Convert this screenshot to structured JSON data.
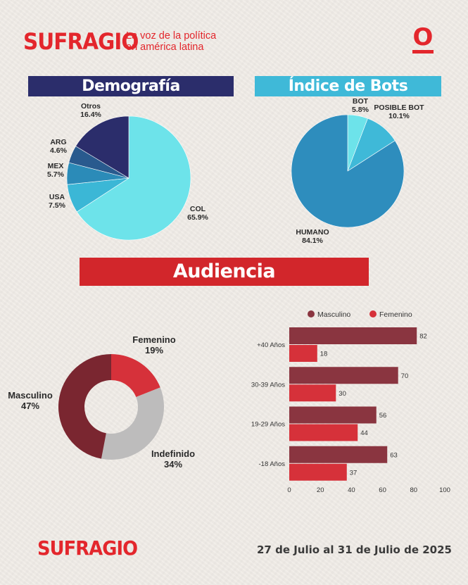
{
  "header": {
    "brand": "SUFRAGIO",
    "tagline_line1": "La voz de la política",
    "tagline_line2": "en américa latina",
    "logo_glyph": "O"
  },
  "colors": {
    "accent_red": "#e3262c",
    "navy": "#2b2d6b",
    "sky": "#3fb9d8",
    "banner_red": "#d2262b"
  },
  "sections": {
    "demografia": "Demografía",
    "bots": "Índice de Bots",
    "audiencia": "Audiencia"
  },
  "footer": {
    "brand": "SUFRAGIO",
    "date_range": "27 de Julio al 31 de Julio de 2025"
  },
  "chart_data": [
    {
      "id": "demografia",
      "type": "pie",
      "title": "Demografía",
      "slices": [
        {
          "name": "COL",
          "value": 65.9,
          "display": "65.9%",
          "color": "#6de3ea"
        },
        {
          "name": "USA",
          "value": 7.5,
          "display": "7.5%",
          "color": "#3bb7d6"
        },
        {
          "name": "MEX",
          "value": 5.7,
          "display": "5.7%",
          "color": "#2b8bb8"
        },
        {
          "name": "ARG",
          "value": 4.6,
          "display": "4.6%",
          "color": "#295a8e"
        },
        {
          "name": "Otros",
          "value": 16.4,
          "display": "16.4%",
          "color": "#2b2d6b"
        }
      ]
    },
    {
      "id": "bots",
      "type": "pie",
      "title": "Índice de Bots",
      "slices": [
        {
          "name": "BOT",
          "value": 5.8,
          "display": "5.8%",
          "color": "#6de3ea"
        },
        {
          "name": "POSIBLE BOT",
          "value": 10.1,
          "display": "10.1%",
          "color": "#3fb9d8"
        },
        {
          "name": "HUMANO",
          "value": 84.1,
          "display": "84.1%",
          "color": "#2e8dbd"
        }
      ]
    },
    {
      "id": "audiencia-genero",
      "type": "pie",
      "title": "Audiencia",
      "donut": true,
      "slices": [
        {
          "name": "Femenino",
          "value": 19,
          "display": "19%",
          "color": "#d6313a"
        },
        {
          "name": "Indefinido",
          "value": 34,
          "display": "34%",
          "color": "#bdbcbc"
        },
        {
          "name": "Masculino",
          "value": 47,
          "display": "47%",
          "color": "#7a2630"
        }
      ]
    },
    {
      "id": "audiencia-edad",
      "type": "bar",
      "orientation": "horizontal",
      "categories": [
        "+40 Años",
        "30-39 Años",
        "19-29 Años",
        "-18 Años"
      ],
      "series": [
        {
          "name": "Masculino",
          "values": [
            82,
            70,
            56,
            63
          ],
          "color": "#8a3540"
        },
        {
          "name": "Femenino",
          "values": [
            18,
            30,
            44,
            37
          ],
          "color": "#d6313a"
        }
      ],
      "xlim": [
        0,
        100
      ],
      "xticks": [
        0,
        20,
        40,
        60,
        80,
        100
      ],
      "legend": "top"
    }
  ]
}
